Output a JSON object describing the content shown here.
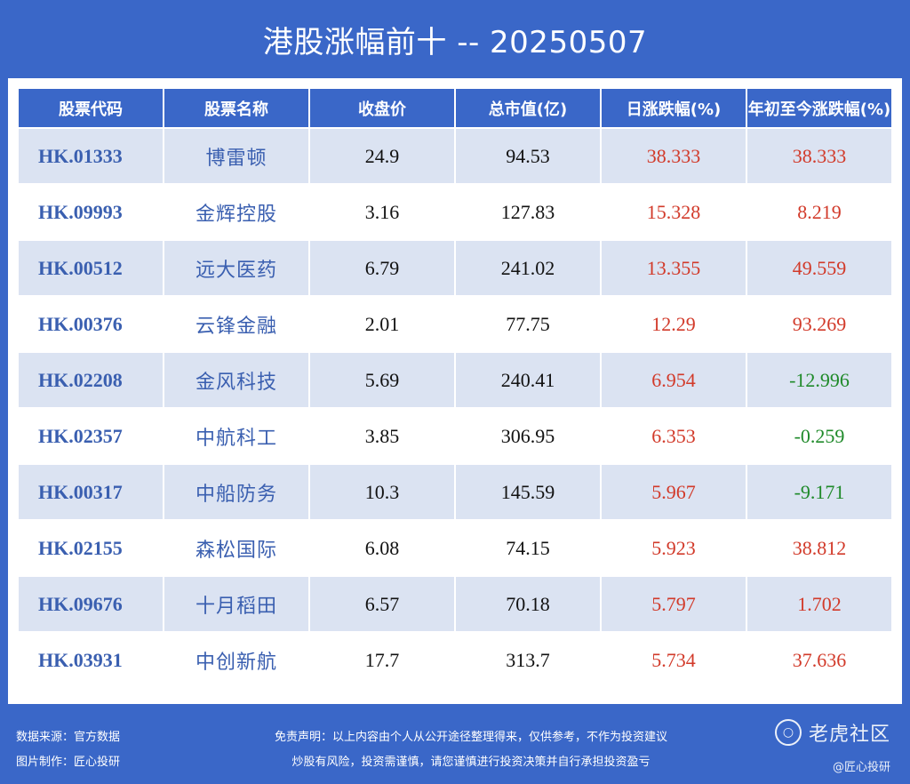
{
  "title": "港股涨幅前十 -- 20250507",
  "table": {
    "headers": [
      "股票代码",
      "股票名称",
      "收盘价",
      "总市值(亿)",
      "日涨跌幅(%)",
      "年初至今涨跌幅(%)"
    ],
    "rows": [
      {
        "code": "HK.01333",
        "name": "博雷顿",
        "close": "24.9",
        "cap": "94.53",
        "day": "38.333",
        "ytd": "38.333"
      },
      {
        "code": "HK.09993",
        "name": "金辉控股",
        "close": "3.16",
        "cap": "127.83",
        "day": "15.328",
        "ytd": "8.219"
      },
      {
        "code": "HK.00512",
        "name": "远大医药",
        "close": "6.79",
        "cap": "241.02",
        "day": "13.355",
        "ytd": "49.559"
      },
      {
        "code": "HK.00376",
        "name": "云锋金融",
        "close": "2.01",
        "cap": "77.75",
        "day": "12.29",
        "ytd": "93.269"
      },
      {
        "code": "HK.02208",
        "name": "金风科技",
        "close": "5.69",
        "cap": "240.41",
        "day": "6.954",
        "ytd": "-12.996"
      },
      {
        "code": "HK.02357",
        "name": "中航科工",
        "close": "3.85",
        "cap": "306.95",
        "day": "6.353",
        "ytd": "-0.259"
      },
      {
        "code": "HK.00317",
        "name": "中船防务",
        "close": "10.3",
        "cap": "145.59",
        "day": "5.967",
        "ytd": "-9.171"
      },
      {
        "code": "HK.02155",
        "name": "森松国际",
        "close": "6.08",
        "cap": "74.15",
        "day": "5.923",
        "ytd": "38.812"
      },
      {
        "code": "HK.09676",
        "name": "十月稻田",
        "close": "6.57",
        "cap": "70.18",
        "day": "5.797",
        "ytd": "1.702"
      },
      {
        "code": "HK.03931",
        "name": "中创新航",
        "close": "17.7",
        "cap": "313.7",
        "day": "5.734",
        "ytd": "37.636"
      }
    ]
  },
  "footer": {
    "source": "数据来源：官方数据",
    "maker": "图片制作：匠心投研",
    "disclaimer1": "免责声明：以上内容由个人从公开途径整理得来，仅供参考，不作为投资建议",
    "disclaimer2": "炒股有风险，投资需谨慎，请您谨慎进行投资决策并自行承担投资盈亏",
    "watermark": "老虎社区",
    "watermark_sub": "@匠心投研"
  },
  "colors": {
    "background": "#3a67c8",
    "header_cell": "#3a67c8",
    "row_stripe": "#dbe3f2",
    "code_text": "#3a5fb0",
    "up": "#d23a2a",
    "down": "#1f8a2a"
  },
  "icons": {
    "watermark_logo": "tiger-logo-icon"
  }
}
